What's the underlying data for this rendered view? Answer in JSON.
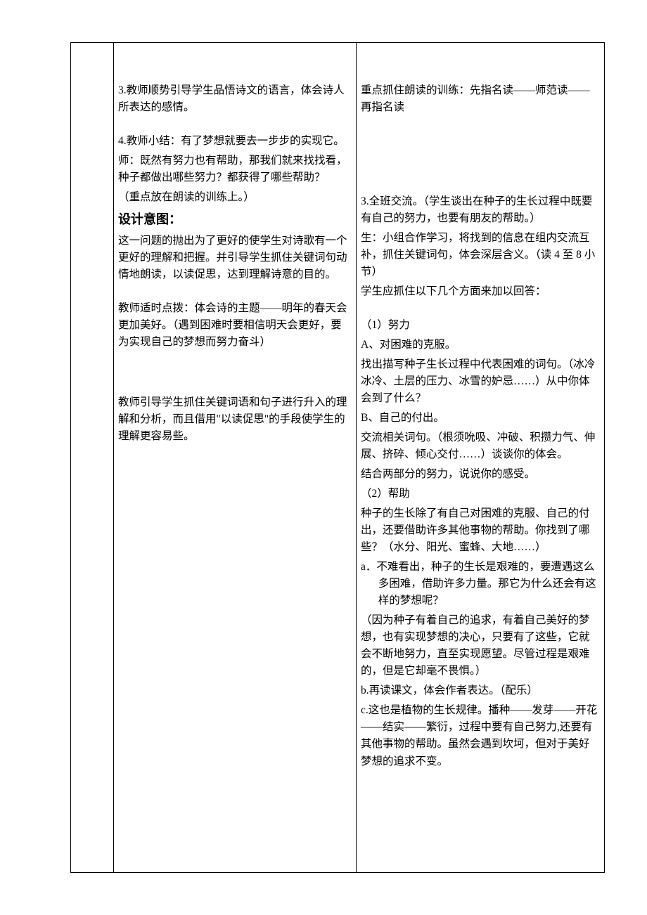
{
  "middle": {
    "p1": "3.教师顺势引导学生品悟诗文的语言，体会诗人所表达的感情。",
    "p2": "4.教师小结：有了梦想就要去一步步的实现它。",
    "p3": "师：既然有努力也有帮助，那我们就来找找看，种子都做出哪些努力？都获得了哪些帮助？",
    "p4": "（重点放在朗读的训练上。）",
    "design_title": "设计意图：",
    "p5": "这一问题的抛出为了更好的使学生对诗歌有一个更好的理解和把握。并引导学生抓住关键词句动情地朗读，以读促思，达到理解诗意的目的。",
    "p6": "教师适时点拨：体会诗的主题——明年的春天会更加美好。（遇到困难时要相信明天会更好，要为实现自己的梦想而努力奋斗）",
    "p7": "教师引导学生抓住关键词语和句子进行升入的理解和分析，而且借用\"以读促思\"的手段使学生的理解更容易些。"
  },
  "right": {
    "r1": "重点抓住朗读的训练：先指名读——师范读——再指名读",
    "r2": "3.全班交流。（学生谈出在种子的生长过程中既要有自己的努力，也要有朋友的帮助。）",
    "r3": "生：小组合作学习，将找到的信息在组内交流互补，抓住关键词句，体会深层含义。（读 4 至 8 小节）",
    "r4": "学生应抓住以下几个方面来加以回答：",
    "r5": "（1）努力",
    "r6": "A、对困难的克服。",
    "r7": "找出描写种子生长过程中代表困难的词句。（冰冷冰冷、土层的压力、冰雪的妒忌……）从中你体会到了什么？",
    "r8": "B、自己的付出。",
    "r9": "交流相关词句。（根须吮吸、冲破、积攒力气、伸展、挤碎、倾心交付……）谈谈你的体会。",
    "r10": "结合两部分的努力，说说你的感受。",
    "r11": "（2）帮助",
    "r12": "种子的生长除了有自己对困难的克服、自己的付出，还要借助许多其他事物的帮助。你找到了哪些？（水分、阳光、蜜蜂、大地……）",
    "r13": "a．不难看出，种子的生长是艰难的，要遭遇这么多困难，借助许多力量。那它为什么还会有这样的梦想呢？",
    "r14": "（因为种子有着自己的追求，有着自己美好的梦想，也有实现梦想的决心，只要有了这些，它就会不断地努力，直至实现愿望。尽管过程是艰难的，但是它却毫不畏惧。）",
    "r15": "b.再读课文，体会作者表达。（配乐）",
    "r16": "c.这也是植物的生长规律。播种——发芽——开花——结实——繁衍，过程中要有自己努力,还要有其他事物的帮助。虽然会遇到坎坷，但对于美好梦想的追求不变。"
  }
}
